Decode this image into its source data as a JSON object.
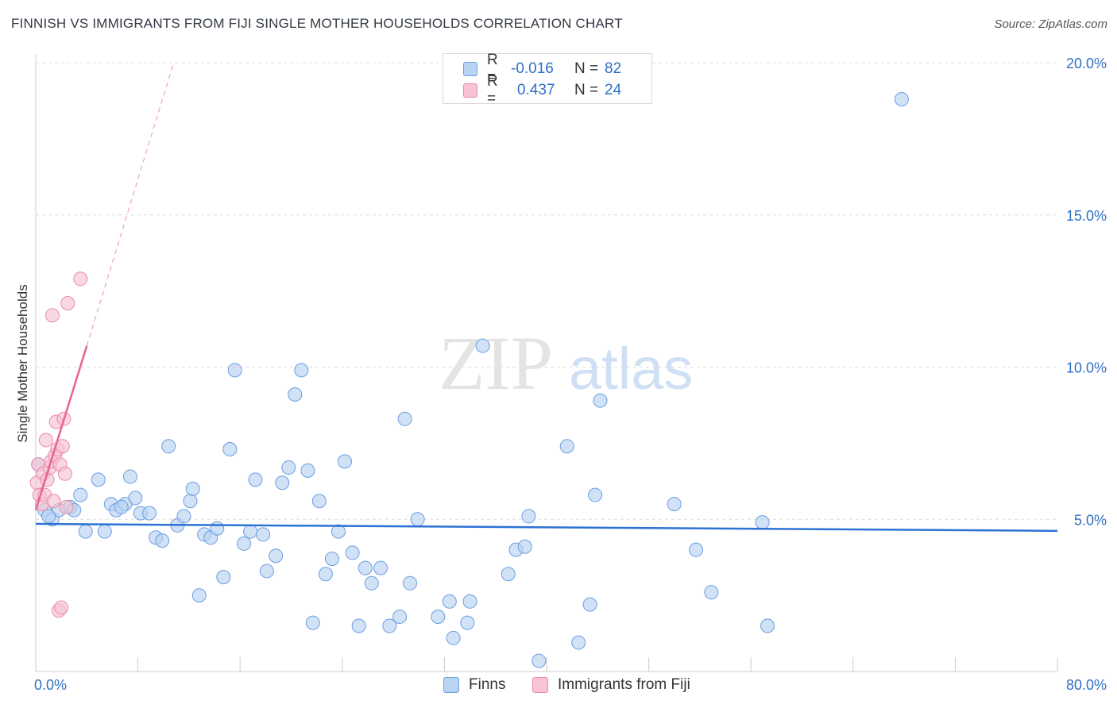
{
  "title": "FINNISH VS IMMIGRANTS FROM FIJI SINGLE MOTHER HOUSEHOLDS CORRELATION CHART",
  "source": "Source: ZipAtlas.com",
  "watermark": {
    "zip": "ZIP",
    "atlas": "atlas"
  },
  "legend": {
    "series": [
      {
        "name": "Finns",
        "r_label": "R =",
        "r_value": "-0.016",
        "n_label": "N =",
        "n_value": "82",
        "fill": "#b9d3f3",
        "stroke": "#6b9ee0"
      },
      {
        "name": "Immigrants from Fiji",
        "r_label": "R =",
        "r_value": "0.437",
        "n_label": "N =",
        "n_value": "24",
        "fill": "#f8c3d3",
        "stroke": "#ea8aa8"
      }
    ]
  },
  "chart_data": {
    "type": "scatter",
    "title": "FINNISH VS IMMIGRANTS FROM FIJI SINGLE MOTHER HOUSEHOLDS CORRELATION CHART",
    "xlabel": "",
    "ylabel": "Single Mother Households",
    "xlim": [
      0,
      80
    ],
    "ylim": [
      0,
      20
    ],
    "x_tick_labels": [
      "0.0%",
      "80.0%"
    ],
    "y_ticks": [
      5,
      10,
      15,
      20
    ],
    "y_tick_labels": [
      "5.0%",
      "10.0%",
      "15.0%",
      "20.0%"
    ],
    "grid": true,
    "series": [
      {
        "name": "Finns",
        "color": "#6b9ee0",
        "fill": "#b9d3f3",
        "trend": {
          "x": [
            0,
            80
          ],
          "y": [
            4.85,
            4.62
          ],
          "color": "#2c72d4"
        },
        "points": [
          [
            0.7,
            5.3
          ],
          [
            1.3,
            5.0
          ],
          [
            1.8,
            5.3
          ],
          [
            2.7,
            5.4
          ],
          [
            3.0,
            5.3
          ],
          [
            3.5,
            5.8
          ],
          [
            3.9,
            4.6
          ],
          [
            4.9,
            6.3
          ],
          [
            5.4,
            4.6
          ],
          [
            5.9,
            5.5
          ],
          [
            6.3,
            5.3
          ],
          [
            7.0,
            5.5
          ],
          [
            7.4,
            6.4
          ],
          [
            7.8,
            5.7
          ],
          [
            8.2,
            5.2
          ],
          [
            8.9,
            5.2
          ],
          [
            9.4,
            4.4
          ],
          [
            9.9,
            4.3
          ],
          [
            10.4,
            7.4
          ],
          [
            11.1,
            4.8
          ],
          [
            11.6,
            5.1
          ],
          [
            12.1,
            5.6
          ],
          [
            12.3,
            6.0
          ],
          [
            12.8,
            2.5
          ],
          [
            13.2,
            4.5
          ],
          [
            13.7,
            4.4
          ],
          [
            14.2,
            4.7
          ],
          [
            14.7,
            3.1
          ],
          [
            15.2,
            7.3
          ],
          [
            15.6,
            9.9
          ],
          [
            16.3,
            4.2
          ],
          [
            16.8,
            4.6
          ],
          [
            17.2,
            6.3
          ],
          [
            17.8,
            4.5
          ],
          [
            18.1,
            3.3
          ],
          [
            18.8,
            3.8
          ],
          [
            19.3,
            6.2
          ],
          [
            19.8,
            6.7
          ],
          [
            20.3,
            9.1
          ],
          [
            20.8,
            9.9
          ],
          [
            21.3,
            6.6
          ],
          [
            21.7,
            1.6
          ],
          [
            22.2,
            5.6
          ],
          [
            22.7,
            3.2
          ],
          [
            23.2,
            3.7
          ],
          [
            23.7,
            4.6
          ],
          [
            24.2,
            6.9
          ],
          [
            24.8,
            3.9
          ],
          [
            25.3,
            1.5
          ],
          [
            25.8,
            3.4
          ],
          [
            26.3,
            2.9
          ],
          [
            27.0,
            3.4
          ],
          [
            27.7,
            1.5
          ],
          [
            28.5,
            1.8
          ],
          [
            28.9,
            8.3
          ],
          [
            29.3,
            2.9
          ],
          [
            29.9,
            5.0
          ],
          [
            31.5,
            1.8
          ],
          [
            32.4,
            2.3
          ],
          [
            32.7,
            1.1
          ],
          [
            33.8,
            1.6
          ],
          [
            34.0,
            2.3
          ],
          [
            35.0,
            10.7
          ],
          [
            37.0,
            3.2
          ],
          [
            37.6,
            4.0
          ],
          [
            38.3,
            4.1
          ],
          [
            38.6,
            5.1
          ],
          [
            39.4,
            0.35
          ],
          [
            41.6,
            7.4
          ],
          [
            42.5,
            0.95
          ],
          [
            43.4,
            2.2
          ],
          [
            43.8,
            5.8
          ],
          [
            44.2,
            8.9
          ],
          [
            50.0,
            5.5
          ],
          [
            51.7,
            4.0
          ],
          [
            52.9,
            2.6
          ],
          [
            56.9,
            4.9
          ],
          [
            57.3,
            1.5
          ],
          [
            67.8,
            18.8
          ],
          [
            0.2,
            6.8
          ],
          [
            1.0,
            5.1
          ],
          [
            6.7,
            5.4
          ]
        ]
      },
      {
        "name": "Immigrants from Fiji",
        "color": "#ea8aa8",
        "fill": "#f8c3d3",
        "trend": {
          "x": [
            0,
            4.0
          ],
          "y": [
            5.3,
            10.7
          ],
          "color": "#e6648e",
          "dashed_extension_to": [
            10.8,
            20.0
          ]
        },
        "points": [
          [
            0.1,
            6.2
          ],
          [
            0.2,
            6.8
          ],
          [
            0.3,
            5.8
          ],
          [
            0.5,
            5.5
          ],
          [
            0.6,
            6.5
          ],
          [
            0.7,
            5.8
          ],
          [
            0.8,
            7.6
          ],
          [
            0.9,
            6.3
          ],
          [
            1.1,
            6.7
          ],
          [
            1.2,
            6.9
          ],
          [
            1.3,
            11.7
          ],
          [
            1.4,
            5.6
          ],
          [
            1.5,
            7.1
          ],
          [
            1.6,
            8.2
          ],
          [
            1.7,
            7.3
          ],
          [
            1.8,
            2.0
          ],
          [
            1.9,
            6.8
          ],
          [
            2.0,
            2.1
          ],
          [
            2.1,
            7.4
          ],
          [
            2.2,
            8.3
          ],
          [
            2.3,
            6.5
          ],
          [
            2.4,
            5.4
          ],
          [
            2.5,
            12.1
          ],
          [
            3.5,
            12.9
          ]
        ]
      }
    ]
  }
}
